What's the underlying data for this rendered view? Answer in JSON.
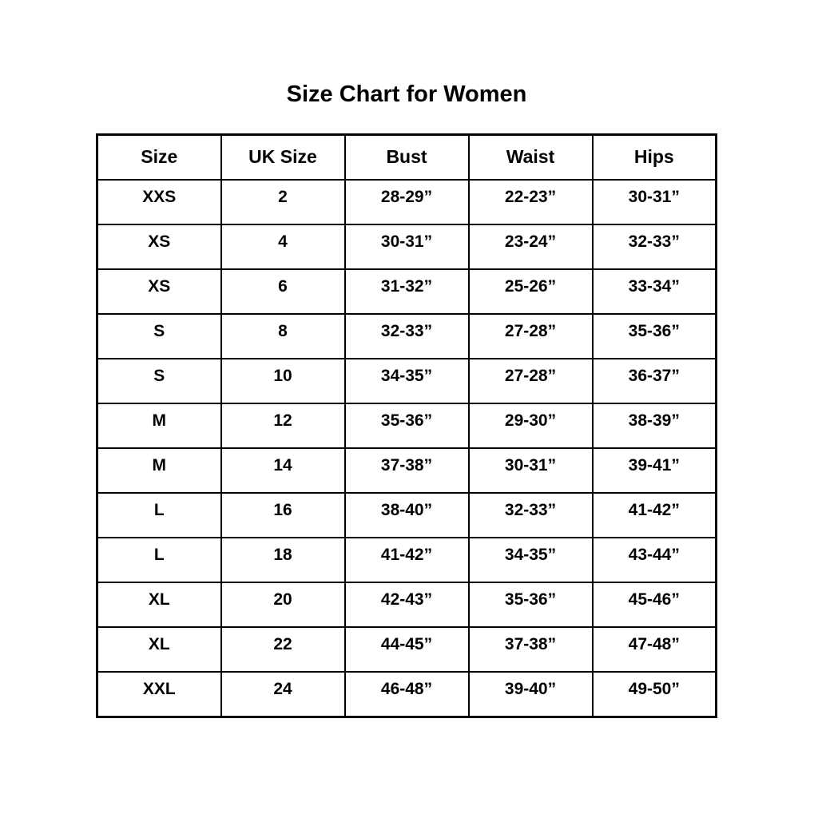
{
  "title": "Size Chart for Women",
  "chart_data": {
    "type": "table",
    "title": "Size Chart for Women",
    "columns": [
      "Size",
      "UK Size",
      "Bust",
      "Waist",
      "Hips"
    ],
    "rows": [
      [
        "XXS",
        "2",
        "28-29”",
        "22-23”",
        "30-31”"
      ],
      [
        "XS",
        "4",
        "30-31”",
        "23-24”",
        "32-33”"
      ],
      [
        "XS",
        "6",
        "31-32”",
        "25-26”",
        "33-34”"
      ],
      [
        "S",
        "8",
        "32-33”",
        "27-28”",
        "35-36”"
      ],
      [
        "S",
        "10",
        "34-35”",
        "27-28”",
        "36-37”"
      ],
      [
        "M",
        "12",
        "35-36”",
        "29-30”",
        "38-39”"
      ],
      [
        "M",
        "14",
        "37-38”",
        "30-31”",
        "39-41”"
      ],
      [
        "L",
        "16",
        "38-40”",
        "32-33”",
        "41-42”"
      ],
      [
        "L",
        "18",
        "41-42”",
        "34-35”",
        "43-44”"
      ],
      [
        "XL",
        "20",
        "42-43”",
        "35-36”",
        "45-46”"
      ],
      [
        "XL",
        "22",
        "44-45”",
        "37-38”",
        "47-48”"
      ],
      [
        "XXL",
        "24",
        "46-48”",
        "39-40”",
        "49-50”"
      ]
    ],
    "layout": {
      "grid": "on",
      "border_color": "#000000",
      "text_color": "#000000",
      "background_color": "#ffffff"
    }
  }
}
